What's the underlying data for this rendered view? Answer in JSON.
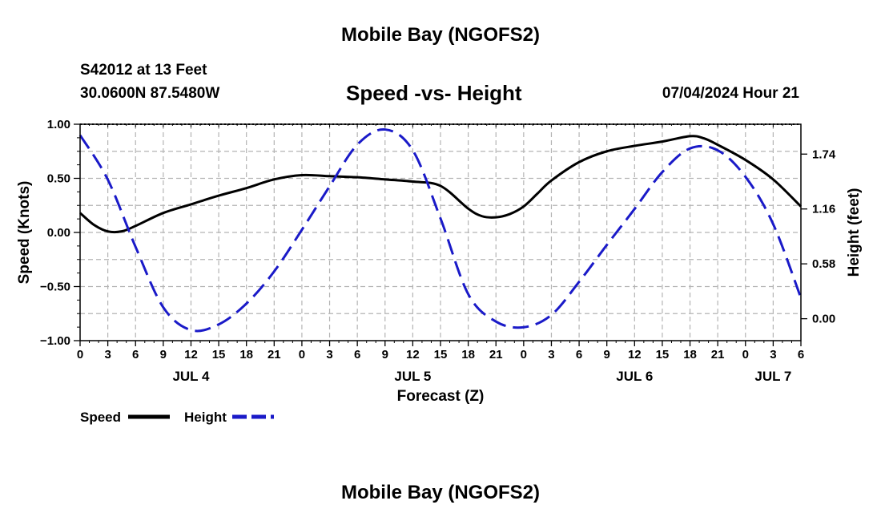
{
  "page": {
    "title_top": "Mobile Bay (NGOFS2)",
    "title_bottom": "Mobile Bay (NGOFS2)",
    "station_line": "S42012 at 13 Feet",
    "coords_line": "30.0600N  87.5480W",
    "date_line": "07/04/2024 Hour 21"
  },
  "legend": {
    "speed_label": "Speed",
    "height_label": "Height"
  },
  "colors": {
    "speed": "#000000",
    "height": "#1a1ac8",
    "grid": "#b4b4b4"
  },
  "chart_data": {
    "type": "line",
    "title": "Speed -vs- Height",
    "xlabel": "Forecast (Z)",
    "ylabel": "Speed (Knots)",
    "y2label": "Height (feet)",
    "xlim": [
      0,
      78
    ],
    "ylim": [
      -1.0,
      1.0
    ],
    "y2lim": [
      -0.2319,
      2.0556
    ],
    "x_ticks": [
      0,
      3,
      6,
      9,
      12,
      15,
      18,
      21,
      24,
      27,
      30,
      33,
      36,
      39,
      42,
      45,
      48,
      51,
      54,
      57,
      60,
      63,
      66,
      69,
      72,
      75,
      78
    ],
    "x_tick_labels": [
      "0",
      "3",
      "6",
      "9",
      "12",
      "15",
      "18",
      "21",
      "0",
      "3",
      "6",
      "9",
      "12",
      "15",
      "18",
      "21",
      "0",
      "3",
      "6",
      "9",
      "12",
      "15",
      "18",
      "21",
      "0",
      "3",
      "6"
    ],
    "day_labels": [
      {
        "x": 12,
        "label": "JUL 4"
      },
      {
        "x": 36,
        "label": "JUL 5"
      },
      {
        "x": 60,
        "label": "JUL 6"
      },
      {
        "x": 75,
        "label": "JUL 7"
      }
    ],
    "y_ticks": [
      -1.0,
      -0.5,
      0.0,
      0.5,
      1.0
    ],
    "y_tick_labels": [
      "−1.00",
      "−0.50",
      "0.00",
      "0.50",
      "1.00"
    ],
    "y2_ticks": [
      0.0,
      0.58,
      1.16,
      1.74
    ],
    "y2_tick_labels": [
      "0.00",
      "0.58",
      "1.16",
      "1.74"
    ],
    "grid": true,
    "series": [
      {
        "name": "Speed",
        "axis": "left",
        "style": "solid",
        "x": [
          0,
          1.5,
          3,
          4.5,
          6,
          9,
          12,
          15,
          18,
          21,
          24,
          27,
          30,
          33,
          36,
          39,
          42,
          43.5,
          45,
          46.5,
          48,
          49.5,
          51,
          54,
          57,
          60,
          63,
          66,
          67.5,
          69,
          72,
          75,
          78
        ],
        "y": [
          0.18,
          0.07,
          0.01,
          0.01,
          0.06,
          0.18,
          0.26,
          0.34,
          0.41,
          0.49,
          0.53,
          0.52,
          0.51,
          0.49,
          0.47,
          0.43,
          0.22,
          0.15,
          0.14,
          0.17,
          0.24,
          0.36,
          0.48,
          0.65,
          0.75,
          0.8,
          0.84,
          0.89,
          0.87,
          0.81,
          0.67,
          0.49,
          0.24
        ]
      },
      {
        "name": "Height",
        "axis": "right",
        "style": "dashed",
        "x": [
          0,
          3,
          6,
          9,
          12,
          15,
          18,
          21,
          24,
          27,
          30,
          33,
          36,
          39,
          42,
          45,
          48,
          51,
          54,
          57,
          60,
          63,
          66,
          69,
          72,
          75,
          78
        ],
        "y": [
          1.94,
          1.47,
          0.76,
          0.12,
          -0.12,
          -0.06,
          0.16,
          0.5,
          0.94,
          1.4,
          1.84,
          2.0,
          1.78,
          1.06,
          0.26,
          -0.03,
          -0.09,
          0.04,
          0.39,
          0.78,
          1.16,
          1.55,
          1.8,
          1.78,
          1.5,
          1.0,
          0.22
        ]
      }
    ]
  }
}
